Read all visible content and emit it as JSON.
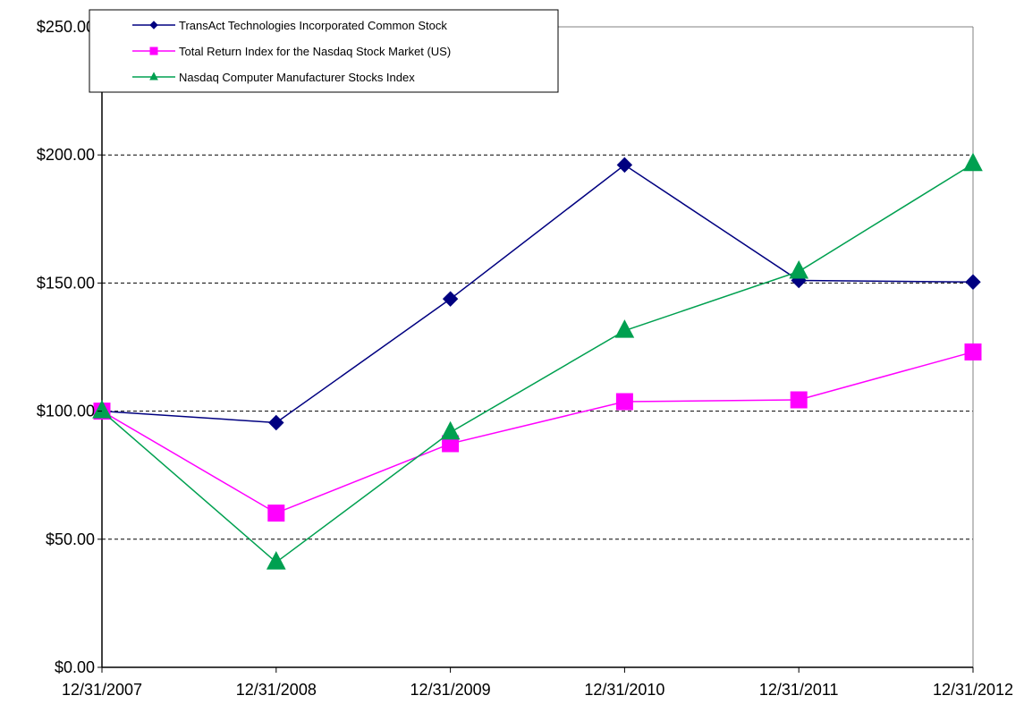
{
  "chart_data": {
    "type": "line",
    "title": "",
    "xlabel": "",
    "ylabel": "",
    "categories": [
      "12/31/2007",
      "12/31/2008",
      "12/31/2009",
      "12/31/2010",
      "12/31/2011",
      "12/31/2012"
    ],
    "ylim": [
      0,
      250
    ],
    "yticks": [
      0,
      50,
      100,
      150,
      200,
      250
    ],
    "ytick_labels": [
      "$0.00",
      "$50.00",
      "$100.00",
      "$150.00",
      "$200.00",
      "$250.00"
    ],
    "grid": "horizontal dashed",
    "legend_position": "top-left",
    "series": [
      {
        "name": "TransAct Technologies Incorporated Common Stock",
        "color": "#000080",
        "marker": "diamond",
        "values": [
          100.0,
          95.5,
          143.8,
          196.1,
          151.0,
          150.4
        ]
      },
      {
        "name": "Total Return Index for the Nasdaq Stock Market (US)",
        "color": "#FF00FF",
        "marker": "square",
        "values": [
          100.0,
          60.2,
          87.3,
          103.7,
          104.4,
          123.1
        ]
      },
      {
        "name": "Nasdaq Computer Manufacturer Stocks Index",
        "color": "#00A050",
        "marker": "triangle",
        "values": [
          100.0,
          41.0,
          91.7,
          131.4,
          154.5,
          196.5
        ]
      }
    ]
  }
}
